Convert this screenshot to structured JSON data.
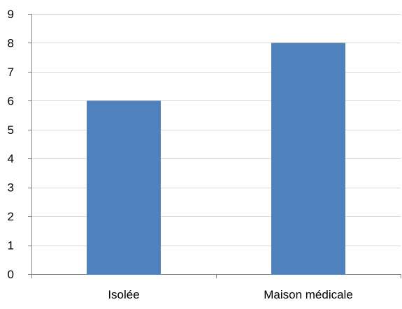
{
  "chart_data": {
    "type": "bar",
    "title": "",
    "xlabel": "",
    "ylabel": "",
    "categories": [
      "Isolée",
      "Maison médicale"
    ],
    "series": [
      {
        "values": [
          6,
          8
        ],
        "color": "#4f81bd"
      }
    ],
    "ylim": [
      0,
      9
    ],
    "yticks": [
      "0",
      "1",
      "2",
      "3",
      "4",
      "5",
      "6",
      "7",
      "8",
      "9"
    ],
    "grid": true,
    "legend": "none"
  },
  "colors": {
    "bar": "#4f81bd",
    "grid": "#d9d9d9",
    "axis": "#868686",
    "text": "#000000"
  }
}
